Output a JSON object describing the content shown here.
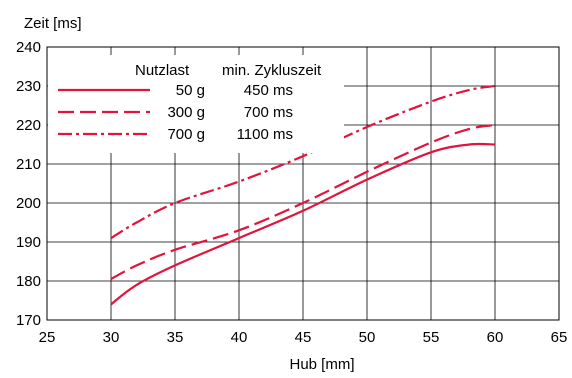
{
  "chart_data": {
    "type": "line",
    "title": "",
    "xlabel": "Hub [mm]",
    "ylabel": "Zeit [ms]",
    "xlim": [
      25,
      65
    ],
    "ylim": [
      170,
      240
    ],
    "xticks": [
      25,
      30,
      35,
      40,
      45,
      50,
      55,
      60,
      65
    ],
    "yticks": [
      170,
      180,
      190,
      200,
      210,
      220,
      230,
      240
    ],
    "grid": true,
    "line_color": "#e0143c",
    "legend": {
      "placement": "top-left",
      "header_payload": "Nutzlast",
      "header_cycle": "min. Zykluszeit",
      "entries": [
        {
          "payload": "50 g",
          "cycle": "450 ms",
          "style": "solid"
        },
        {
          "payload": "300 g",
          "cycle": "700 ms",
          "style": "dashed"
        },
        {
          "payload": "700 g",
          "cycle": "1100 ms",
          "style": "dashdot"
        }
      ]
    },
    "series": [
      {
        "style": "solid",
        "x": [
          30,
          32,
          35,
          40,
          45,
          50,
          55,
          58,
          60
        ],
        "y": [
          174,
          179,
          184,
          191,
          198,
          206,
          213,
          215,
          215
        ]
      },
      {
        "style": "dashed",
        "x": [
          30,
          32,
          35,
          40,
          45,
          50,
          55,
          58,
          60
        ],
        "y": [
          180.5,
          184,
          188,
          193,
          200,
          208,
          215.5,
          219,
          220
        ]
      },
      {
        "style": "dashdot",
        "x": [
          30,
          32,
          35,
          40,
          45,
          50,
          55,
          58,
          60
        ],
        "y": [
          191,
          195,
          200,
          205.5,
          212,
          219.5,
          226,
          229,
          230
        ]
      }
    ]
  }
}
